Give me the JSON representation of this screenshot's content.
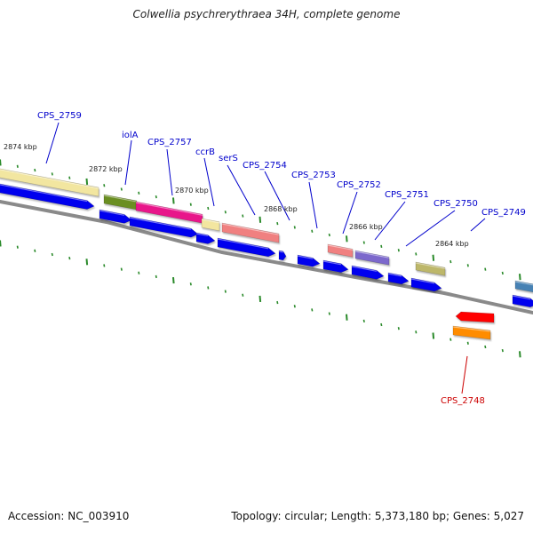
{
  "title": "Colwellia psychrerythraea 34H, complete genome",
  "footer": {
    "accession": "Accession: NC_003910",
    "summary": "Topology: circular; Length: 5,373,180 bp; Genes: 5,027"
  },
  "colors": {
    "backbone": "#888888",
    "tick": "#2a8a2a",
    "cds": "#0000ee",
    "label_forward": "#0000cc",
    "label_reverse": "#cc0000"
  },
  "kbp_labels": [
    "2874 kbp",
    "2872 kbp",
    "2870 kbp",
    "2868 kbp",
    "2866 kbp",
    "2864 kbp"
  ],
  "gene_labels": [
    {
      "text": "CPS_2759",
      "strand": "forward"
    },
    {
      "text": "iolA",
      "strand": "forward"
    },
    {
      "text": "CPS_2757",
      "strand": "forward"
    },
    {
      "text": "ccrB",
      "strand": "forward"
    },
    {
      "text": "serS",
      "strand": "forward"
    },
    {
      "text": "CPS_2754",
      "strand": "forward"
    },
    {
      "text": "CPS_2753",
      "strand": "forward"
    },
    {
      "text": "CPS_2752",
      "strand": "forward"
    },
    {
      "text": "CPS_2751",
      "strand": "forward"
    },
    {
      "text": "CPS_2750",
      "strand": "forward"
    },
    {
      "text": "CPS_2749",
      "strand": "forward"
    },
    {
      "text": "CPS_2748",
      "strand": "reverse"
    }
  ],
  "feature_colors": {
    "CPS_2759": "#f2e6a0",
    "iolA": "#6b8e23",
    "CPS_2757": "#e8138a",
    "ccrB": "#f3e6a0",
    "serS": "#f08080",
    "CPS_2753": "#f08080",
    "CPS_2752": "#7b68cc",
    "CPS_2750": "#bdb76b",
    "CPS_2749": "#4682b4",
    "CPS_2748_gene": "#ff0000",
    "CPS_2748_cds": "#ff8c00"
  }
}
